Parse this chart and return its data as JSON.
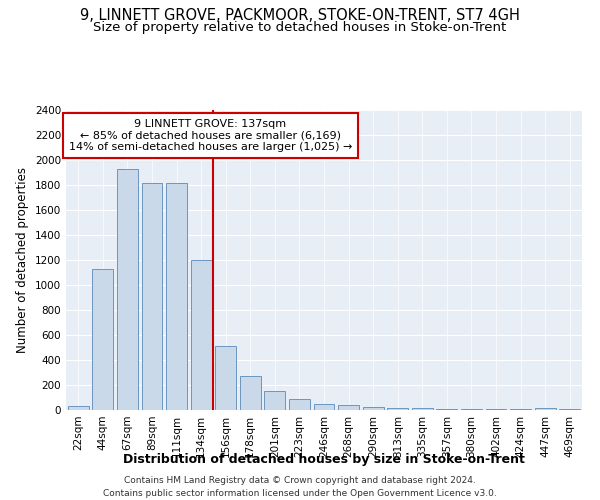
{
  "title1": "9, LINNETT GROVE, PACKMOOR, STOKE-ON-TRENT, ST7 4GH",
  "title2": "Size of property relative to detached houses in Stoke-on-Trent",
  "xlabel": "Distribution of detached houses by size in Stoke-on-Trent",
  "ylabel": "Number of detached properties",
  "categories": [
    "22sqm",
    "44sqm",
    "67sqm",
    "89sqm",
    "111sqm",
    "134sqm",
    "156sqm",
    "178sqm",
    "201sqm",
    "223sqm",
    "246sqm",
    "268sqm",
    "290sqm",
    "313sqm",
    "335sqm",
    "357sqm",
    "380sqm",
    "402sqm",
    "424sqm",
    "447sqm",
    "469sqm"
  ],
  "values": [
    30,
    1130,
    1930,
    1820,
    1820,
    1200,
    510,
    270,
    150,
    90,
    45,
    40,
    25,
    20,
    15,
    10,
    8,
    5,
    5,
    20,
    5
  ],
  "bar_color": "#cad9ea",
  "bar_edge_color": "#6b96c0",
  "bar_edge_width": 0.7,
  "red_line_color": "#cc0000",
  "annotation_line1": "9 LINNETT GROVE: 137sqm",
  "annotation_line2": "← 85% of detached houses are smaller (6,169)",
  "annotation_line3": "14% of semi-detached houses are larger (1,025) →",
  "annotation_box_color": "#ffffff",
  "annotation_box_edge": "#cc0000",
  "ylim": [
    0,
    2400
  ],
  "yticks": [
    0,
    200,
    400,
    600,
    800,
    1000,
    1200,
    1400,
    1600,
    1800,
    2000,
    2200,
    2400
  ],
  "bg_color": "#e8eef6",
  "footer1": "Contains HM Land Registry data © Crown copyright and database right 2024.",
  "footer2": "Contains public sector information licensed under the Open Government Licence v3.0.",
  "title1_fontsize": 10.5,
  "title2_fontsize": 9.5,
  "xlabel_fontsize": 9,
  "ylabel_fontsize": 8.5,
  "tick_fontsize": 7.5,
  "annotation_fontsize": 8,
  "footer_fontsize": 6.5
}
